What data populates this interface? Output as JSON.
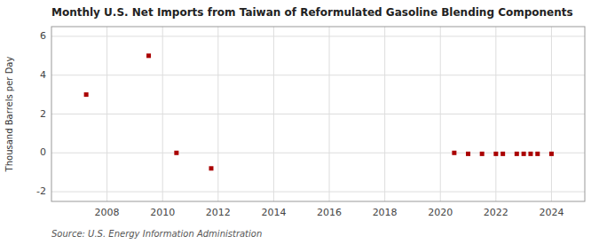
{
  "chart_data": {
    "type": "scatter",
    "title": "Monthly U.S. Net Imports from Taiwan of Reformulated Gasoline Blending Components",
    "ylabel": "Thousand Barrels per Day",
    "source": "Source: U.S. Energy Information Administration",
    "x": [
      2007.25,
      2009.5,
      2010.5,
      2011.75,
      2020.5,
      2021.0,
      2021.5,
      2022.0,
      2022.25,
      2022.75,
      2023.0,
      2023.25,
      2023.5,
      2024.0
    ],
    "values": [
      3.0,
      5.0,
      0.0,
      -0.8,
      0.0,
      -0.05,
      -0.05,
      -0.05,
      -0.05,
      -0.05,
      -0.05,
      -0.05,
      -0.05,
      -0.05
    ],
    "color": "#aa0000",
    "marker": "square",
    "xlim": [
      2006.0,
      2025.2
    ],
    "ylim": [
      -2.5,
      6.5
    ],
    "xticks": [
      2008,
      2010,
      2012,
      2014,
      2016,
      2018,
      2020,
      2022,
      2024
    ],
    "yticks": [
      -2,
      0,
      2,
      4,
      6
    ],
    "grid": true
  }
}
